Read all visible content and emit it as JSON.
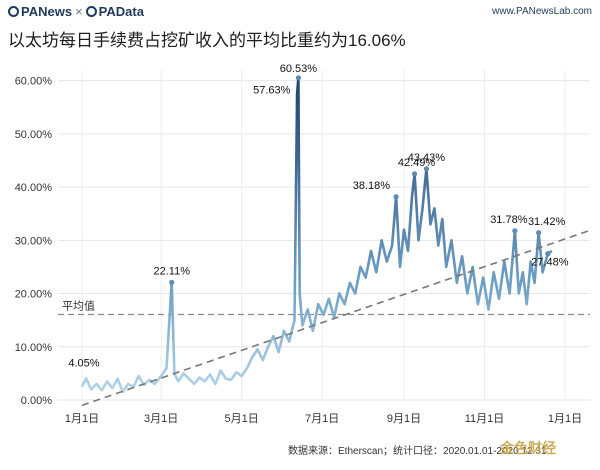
{
  "header": {
    "brand_left": "PANews",
    "brand_sep": "×",
    "brand_right": "PAData",
    "site": "www.PANewsLab.com"
  },
  "title": "以太坊每日手续费占挖矿收入的平均比重约为16.06%",
  "footer": "数据来源：Etherscan；统计口径：2020.01.01-2020.12.31",
  "watermark": "金色财经",
  "chart_data": {
    "type": "line",
    "title": "以太坊每日手续费占挖矿收入的平均比重约为16.06%",
    "xlabel": "",
    "ylabel": "",
    "ylim": [
      0,
      62
    ],
    "yticks": [
      0,
      10,
      20,
      30,
      40,
      50,
      60
    ],
    "ytick_labels": [
      "0.00%",
      "10.00%",
      "20.00%",
      "30.00%",
      "40.00%",
      "50.00%",
      "60.00%"
    ],
    "xticks": [
      "2020-01-01",
      "2020-03-01",
      "2020-05-01",
      "2020-07-01",
      "2020-09-01",
      "2020-11-01",
      "2021-01-01"
    ],
    "xtick_labels": [
      "1月1日",
      "3月1日",
      "5月1日",
      "7月1日",
      "9月1日",
      "11月1日",
      "1月1日"
    ],
    "grid": true,
    "average": {
      "label": "平均值",
      "value": 16.06
    },
    "trend": {
      "start": {
        "x": "2020-01-01",
        "y": -1
      },
      "end": {
        "x": "2021-01-01",
        "y": 30
      }
    },
    "colors": {
      "line_low": "#b8d8ec",
      "line_high": "#1f3f6b",
      "average": "#8a8a8a",
      "trend": "#777777"
    },
    "annotations": [
      {
        "x": "2020-01-04",
        "y": 4.05,
        "label": "4.05%"
      },
      {
        "x": "2020-03-09",
        "y": 22.11,
        "label": "22.11%"
      },
      {
        "x": "2020-06-13",
        "y": 60.53,
        "label": "60.53%"
      },
      {
        "x": "2020-06-13",
        "y": 57.63,
        "label": "57.63%"
      },
      {
        "x": "2020-08-26",
        "y": 38.18,
        "label": "38.18%"
      },
      {
        "x": "2020-09-09",
        "y": 42.49,
        "label": "42.49%"
      },
      {
        "x": "2020-09-18",
        "y": 43.43,
        "label": "43.43%"
      },
      {
        "x": "2020-11-24",
        "y": 31.78,
        "label": "31.78%"
      },
      {
        "x": "2020-12-12",
        "y": 31.42,
        "label": "31.42%"
      },
      {
        "x": "2020-12-19",
        "y": 27.48,
        "label": "27.48%"
      }
    ],
    "series": [
      {
        "x": [
          "2020-01-01",
          "2020-01-04",
          "2020-01-08",
          "2020-01-12",
          "2020-01-16",
          "2020-01-20",
          "2020-01-24",
          "2020-01-28",
          "2020-02-01",
          "2020-02-05",
          "2020-02-09",
          "2020-02-13",
          "2020-02-17",
          "2020-02-21",
          "2020-02-25",
          "2020-03-01",
          "2020-03-05",
          "2020-03-09",
          "2020-03-11",
          "2020-03-14",
          "2020-03-18",
          "2020-03-22",
          "2020-03-26",
          "2020-03-30",
          "2020-04-03",
          "2020-04-07",
          "2020-04-11",
          "2020-04-15",
          "2020-04-19",
          "2020-04-23",
          "2020-04-27",
          "2020-05-01",
          "2020-05-05",
          "2020-05-09",
          "2020-05-13",
          "2020-05-17",
          "2020-05-21",
          "2020-05-25",
          "2020-05-29",
          "2020-06-02",
          "2020-06-06",
          "2020-06-10",
          "2020-06-12",
          "2020-06-13",
          "2020-06-14",
          "2020-06-16",
          "2020-06-20",
          "2020-06-24",
          "2020-06-28",
          "2020-07-02",
          "2020-07-06",
          "2020-07-10",
          "2020-07-14",
          "2020-07-18",
          "2020-07-22",
          "2020-07-26",
          "2020-07-30",
          "2020-08-03",
          "2020-08-07",
          "2020-08-11",
          "2020-08-15",
          "2020-08-19",
          "2020-08-23",
          "2020-08-26",
          "2020-08-29",
          "2020-09-01",
          "2020-09-04",
          "2020-09-07",
          "2020-09-09",
          "2020-09-12",
          "2020-09-15",
          "2020-09-18",
          "2020-09-21",
          "2020-09-24",
          "2020-09-27",
          "2020-09-30",
          "2020-10-03",
          "2020-10-07",
          "2020-10-11",
          "2020-10-15",
          "2020-10-19",
          "2020-10-23",
          "2020-10-27",
          "2020-10-31",
          "2020-11-04",
          "2020-11-08",
          "2020-11-12",
          "2020-11-16",
          "2020-11-20",
          "2020-11-24",
          "2020-11-27",
          "2020-11-30",
          "2020-12-03",
          "2020-12-06",
          "2020-12-09",
          "2020-12-12",
          "2020-12-15",
          "2020-12-19",
          "2020-12-22"
        ],
        "values": [
          2.5,
          4.05,
          2.0,
          3.0,
          1.8,
          3.5,
          2.2,
          4.0,
          1.5,
          3.0,
          2.5,
          4.5,
          2.8,
          3.8,
          3.0,
          4.5,
          6.0,
          22.11,
          5.0,
          3.5,
          5.0,
          4.0,
          3.0,
          4.2,
          3.5,
          4.8,
          3.0,
          5.5,
          4.0,
          3.8,
          5.2,
          4.5,
          6.0,
          8.0,
          9.5,
          7.5,
          10.0,
          12.0,
          9.0,
          13.0,
          11.0,
          15.0,
          57.63,
          60.53,
          20.0,
          14.0,
          17.0,
          13.0,
          18.0,
          16.0,
          19.0,
          15.5,
          20.0,
          18.0,
          22.0,
          20.0,
          25.0,
          23.0,
          28.0,
          24.0,
          30.0,
          26.0,
          29.0,
          38.18,
          25.0,
          32.0,
          28.0,
          38.0,
          42.49,
          30.0,
          36.0,
          43.43,
          33.0,
          36.0,
          29.0,
          34.0,
          25.0,
          30.0,
          22.0,
          27.0,
          20.0,
          25.0,
          18.0,
          23.0,
          17.0,
          24.0,
          19.0,
          26.0,
          20.0,
          31.78,
          20.0,
          24.0,
          18.0,
          26.0,
          22.0,
          31.42,
          24.0,
          27.48,
          28.0
        ]
      }
    ]
  }
}
